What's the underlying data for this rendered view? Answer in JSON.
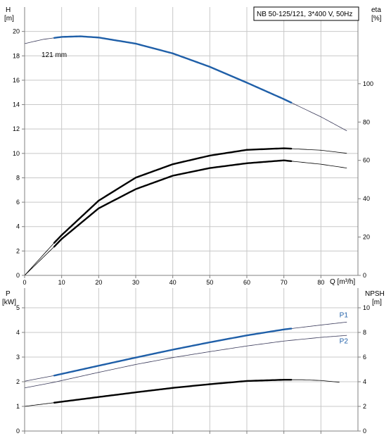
{
  "colors": {
    "blue": "#1f5fa8",
    "thin": "#3a3a5a",
    "black": "#000000",
    "grid": "#c8c8c8",
    "axis": "#808080"
  },
  "chart_data": [
    {
      "type": "line",
      "title": "NB 50-125/121, 3*400 V, 50Hz",
      "y_left_label": [
        "H",
        "[m]"
      ],
      "y_right_label": [
        "eta",
        "[%]"
      ],
      "x_label": "Q [m³/h]",
      "x_range": [
        0,
        90
      ],
      "x_ticks": [
        0,
        10,
        20,
        30,
        40,
        50,
        60,
        70,
        80
      ],
      "y_left_range": [
        0,
        22
      ],
      "y_left_ticks": [
        0,
        2,
        4,
        6,
        8,
        10,
        12,
        14,
        16,
        18,
        20
      ],
      "y_right_scale": [
        0,
        140
      ],
      "y_right_ticks": [
        0,
        20,
        40,
        60,
        80,
        100
      ],
      "grid": true,
      "annotations": [
        {
          "text": "121 mm",
          "x": 8.5,
          "y": 19.6
        }
      ],
      "series": [
        {
          "axis": "left",
          "style": "blue",
          "thin": {
            "x": [
              0,
              5,
              10,
              15,
              20,
              30,
              40,
              50,
              60,
              70,
              80,
              87
            ],
            "y": [
              19.0,
              19.35,
              19.55,
              19.6,
              19.5,
              19.0,
              18.2,
              17.1,
              15.8,
              14.45,
              13.0,
              11.85
            ]
          },
          "thick_range": [
            8,
            72
          ]
        },
        {
          "axis": "right",
          "style": "black",
          "thin": {
            "x": [
              0,
              8,
              10,
              20,
              30,
              40,
              50,
              60,
              70,
              80,
              87
            ],
            "y": [
              0,
              15,
              19,
              35,
              45,
              52,
              56,
              58.5,
              60,
              58,
              56
            ]
          },
          "thick_range": [
            8,
            72
          ]
        },
        {
          "axis": "right",
          "style": "black",
          "thin": {
            "x": [
              0,
              8,
              10,
              20,
              30,
              40,
              50,
              60,
              70,
              80,
              87
            ],
            "y": [
              0,
              17,
              21,
              39,
              51,
              58,
              62.5,
              65.5,
              66.3,
              65.3,
              63.7
            ]
          },
          "thick_range": [
            8,
            72
          ]
        }
      ]
    },
    {
      "type": "line",
      "y_left_label": [
        "P",
        "[kW]"
      ],
      "y_right_label": [
        "NPSH",
        "[m]"
      ],
      "x_range": [
        0,
        90
      ],
      "x_ticks": [
        0,
        10,
        20,
        30,
        40,
        50,
        60,
        70,
        80
      ],
      "y_left_range": [
        0,
        5.8
      ],
      "y_left_ticks": [
        0,
        1,
        2,
        3,
        4,
        5
      ],
      "y_right_scale": [
        0,
        11.6
      ],
      "y_right_ticks": [
        0,
        2,
        4,
        6,
        8,
        10
      ],
      "grid": true,
      "series": [
        {
          "name": "P1",
          "axis": "left",
          "style": "blue",
          "thin": {
            "x": [
              0,
              8,
              20,
              30,
              40,
              50,
              60,
              70,
              80,
              87
            ],
            "y": [
              2.02,
              2.25,
              2.65,
              2.98,
              3.3,
              3.6,
              3.88,
              4.12,
              4.3,
              4.42
            ]
          },
          "thick_range": [
            8,
            72
          ],
          "label_at": [
            85,
            4.62
          ]
        },
        {
          "name": "P2",
          "axis": "left",
          "style": "blue",
          "thin": {
            "x": [
              0,
              8,
              20,
              30,
              40,
              50,
              60,
              70,
              80,
              87
            ],
            "y": [
              1.75,
              1.98,
              2.38,
              2.7,
              2.98,
              3.22,
              3.45,
              3.65,
              3.8,
              3.88
            ]
          },
          "thick_range": [
            8,
            8
          ],
          "label_at": [
            85,
            3.56
          ]
        },
        {
          "axis": "left",
          "style": "black",
          "thin": {
            "x": [
              0,
              8,
              20,
              30,
              40,
              50,
              60,
              70,
              75,
              80,
              85
            ],
            "y": [
              1.0,
              1.15,
              1.38,
              1.57,
              1.75,
              1.9,
              2.03,
              2.08,
              2.08,
              2.05,
              1.98
            ]
          },
          "thick_range": [
            8,
            72
          ]
        }
      ]
    }
  ]
}
